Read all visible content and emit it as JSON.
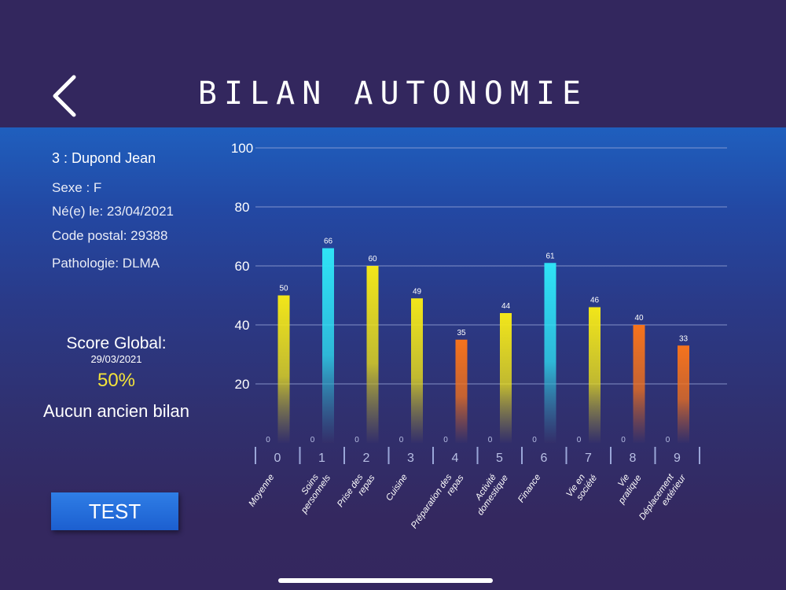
{
  "header": {
    "title": "BILAN AUTONOMIE",
    "back_icon": "chevron-left-icon"
  },
  "patient": {
    "name": "3 : Dupond Jean",
    "sexe": "Sexe : F",
    "birth": "Né(e) le: 23/04/2021",
    "postal": "Code postal: 29388",
    "pathology": "Pathologie: DLMA"
  },
  "score": {
    "title": "Score Global:",
    "date": "29/03/2021",
    "value": "50%",
    "previous": "Aucun ancien bilan"
  },
  "test_button": {
    "label": "TEST"
  },
  "colors": {
    "yellow": "#f2e619",
    "cyan": "#2fe3f6",
    "orange": "#f6731c",
    "value_color": "#f3c43a"
  },
  "chart_data": {
    "type": "bar",
    "categories": [
      "0",
      "1",
      "2",
      "3",
      "4",
      "5",
      "6",
      "7",
      "8",
      "9"
    ],
    "category_names": [
      "Moyenne",
      "Soins personnels",
      "Prise des repas",
      "Cuisine",
      "Préparation des repas",
      "Activité domestique",
      "Finance",
      "Vie en société",
      "Vie pratique",
      "Déplacement extérieur"
    ],
    "values": [
      50,
      66,
      60,
      49,
      35,
      44,
      61,
      46,
      40,
      33
    ],
    "bar_colors": [
      "yellow",
      "cyan",
      "yellow",
      "yellow",
      "orange",
      "yellow",
      "cyan",
      "yellow",
      "orange",
      "orange"
    ],
    "zero_labels": [
      "0",
      "0",
      "0",
      "0",
      "0",
      "0",
      "0",
      "0",
      "0",
      "0"
    ],
    "yticks": [
      20,
      40,
      60,
      80,
      100
    ],
    "ylim": [
      0,
      100
    ],
    "grid": true
  }
}
